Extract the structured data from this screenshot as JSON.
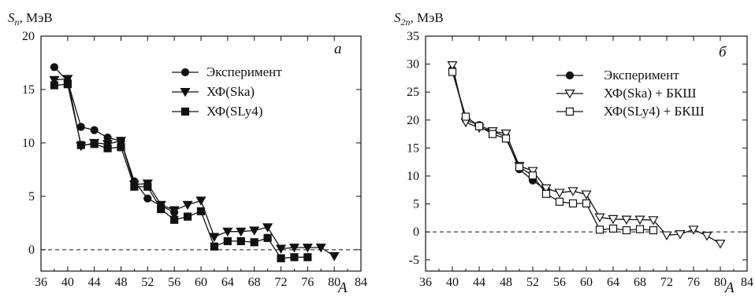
{
  "charts": [
    {
      "panel_label": "а",
      "ylabel_symbol": "S",
      "ylabel_sub": "n",
      "ylabel_unit": ", МэВ",
      "xlabel": "A",
      "chart_data": {
        "type": "line",
        "xlim": [
          36,
          84
        ],
        "ylim": [
          -2,
          20
        ],
        "xticks": [
          36,
          40,
          44,
          48,
          52,
          56,
          60,
          64,
          68,
          72,
          76,
          80,
          84
        ],
        "yticks": [
          0,
          5,
          10,
          15,
          20
        ],
        "zero_line": "dashed",
        "legend_position": "top-right",
        "series": [
          {
            "name": "Эксперимент",
            "marker": "circle-filled",
            "points": [
              [
                38,
                17.1
              ],
              [
                40,
                15.8
              ],
              [
                42,
                11.5
              ],
              [
                44,
                11.2
              ],
              [
                46,
                10.5
              ],
              [
                48,
                10.2
              ],
              [
                50,
                6.4
              ],
              [
                52,
                4.8
              ],
              [
                54,
                4.1
              ],
              [
                56,
                3.5
              ],
              [
                58,
                null
              ]
            ]
          },
          {
            "name": "ХФ(Ska)",
            "marker": "triangle-down-filled",
            "points": [
              [
                38,
                15.9
              ],
              [
                40,
                16.0
              ],
              [
                42,
                9.7
              ],
              [
                44,
                10.0
              ],
              [
                46,
                9.9
              ],
              [
                48,
                10.2
              ],
              [
                50,
                6.1
              ],
              [
                52,
                6.2
              ],
              [
                54,
                4.2
              ],
              [
                56,
                3.7
              ],
              [
                58,
                4.2
              ],
              [
                60,
                4.6
              ],
              [
                62,
                1.2
              ],
              [
                64,
                1.7
              ],
              [
                66,
                1.7
              ],
              [
                68,
                1.8
              ],
              [
                70,
                2.1
              ],
              [
                72,
                0.1
              ],
              [
                74,
                0.2
              ],
              [
                76,
                0.2
              ],
              [
                78,
                0.2
              ],
              [
                80,
                -0.6
              ]
            ]
          },
          {
            "name": "ХФ(SLy4)",
            "marker": "square-filled",
            "points": [
              [
                38,
                15.4
              ],
              [
                40,
                15.5
              ],
              [
                42,
                9.8
              ],
              [
                44,
                9.9
              ],
              [
                46,
                9.5
              ],
              [
                48,
                9.6
              ],
              [
                50,
                5.9
              ],
              [
                52,
                5.9
              ],
              [
                54,
                3.8
              ],
              [
                56,
                2.8
              ],
              [
                58,
                3.1
              ],
              [
                60,
                3.6
              ],
              [
                62,
                0.3
              ],
              [
                64,
                0.8
              ],
              [
                66,
                0.8
              ],
              [
                68,
                0.7
              ],
              [
                70,
                1.1
              ],
              [
                72,
                -0.8
              ],
              [
                74,
                -0.7
              ],
              [
                76,
                -0.7
              ]
            ]
          }
        ]
      }
    },
    {
      "panel_label": "б",
      "ylabel_symbol": "S",
      "ylabel_sub": "2n",
      "ylabel_unit": ", МэВ",
      "xlabel": "A",
      "chart_data": {
        "type": "line",
        "xlim": [
          36,
          84
        ],
        "ylim": [
          -7,
          35
        ],
        "xticks": [
          36,
          40,
          44,
          48,
          52,
          56,
          60,
          64,
          68,
          72,
          76,
          80,
          84
        ],
        "yticks": [
          -5,
          0,
          5,
          10,
          15,
          20,
          25,
          30,
          35
        ],
        "zero_line": "dashed",
        "legend_position": "top-right",
        "series": [
          {
            "name": "Эксперимент",
            "marker": "circle-filled",
            "points": [
              [
                40,
                29.0
              ],
              [
                42,
                20.0
              ],
              [
                44,
                19.1
              ],
              [
                46,
                18.0
              ],
              [
                48,
                17.0
              ],
              [
                50,
                11.2
              ],
              [
                52,
                9.2
              ],
              [
                54,
                7.5
              ]
            ]
          },
          {
            "name": "ХФ(Ska) + БКШ",
            "marker": "triangle-down-open",
            "points": [
              [
                40,
                29.8
              ],
              [
                42,
                19.6
              ],
              [
                44,
                18.6
              ],
              [
                46,
                18.0
              ],
              [
                48,
                17.6
              ],
              [
                50,
                11.8
              ],
              [
                52,
                10.9
              ],
              [
                54,
                7.8
              ],
              [
                56,
                7.0
              ],
              [
                58,
                7.3
              ],
              [
                60,
                6.7
              ],
              [
                62,
                2.6
              ],
              [
                64,
                2.3
              ],
              [
                66,
                2.2
              ],
              [
                68,
                2.2
              ],
              [
                70,
                2.1
              ],
              [
                72,
                -0.6
              ],
              [
                74,
                -0.4
              ],
              [
                76,
                0.4
              ],
              [
                78,
                -0.7
              ],
              [
                80,
                -2.1
              ]
            ]
          },
          {
            "name": "ХФ(SLy4) + БКШ",
            "marker": "square-open",
            "points": [
              [
                40,
                28.6
              ],
              [
                42,
                20.6
              ],
              [
                44,
                18.9
              ],
              [
                46,
                17.5
              ],
              [
                48,
                16.7
              ],
              [
                50,
                11.6
              ],
              [
                52,
                10.1
              ],
              [
                54,
                6.8
              ],
              [
                56,
                5.4
              ],
              [
                58,
                5.1
              ],
              [
                60,
                5.1
              ],
              [
                62,
                0.4
              ],
              [
                64,
                0.6
              ],
              [
                66,
                0.3
              ],
              [
                68,
                0.5
              ],
              [
                70,
                0.3
              ]
            ]
          }
        ]
      }
    }
  ]
}
